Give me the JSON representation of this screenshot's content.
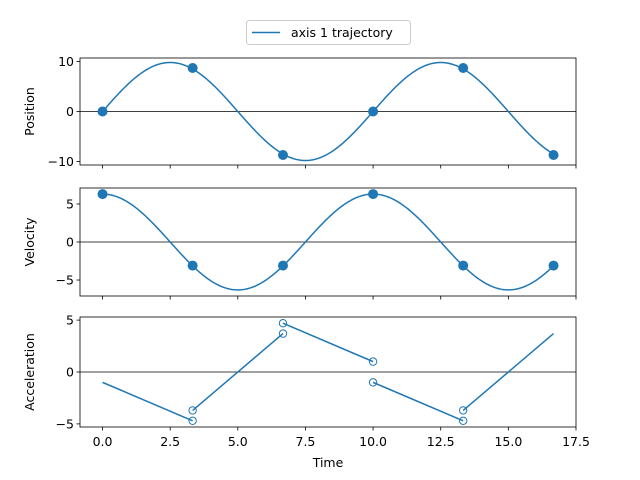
{
  "chart_data": {
    "type": "line",
    "legend": {
      "label": "axis 1 trajectory",
      "placement": "top-center"
    },
    "xlabel": "Time",
    "xlim": [
      -0.833,
      17.5
    ],
    "xticks": [
      0.0,
      2.5,
      5.0,
      7.5,
      10.0,
      12.5,
      15.0,
      17.5
    ],
    "xtick_labels": [
      "0.0",
      "2.5",
      "5.0",
      "7.5",
      "10.0",
      "12.5",
      "15.0",
      "17.5"
    ],
    "line_color": "#1f77b4",
    "subplots": [
      {
        "ylabel": "Position",
        "ylim": [
          -10.7,
          10.7
        ],
        "yticks": [
          10,
          0,
          -10
        ],
        "ytick_labels": [
          "10",
          "0",
          "−10"
        ],
        "zero_line": true,
        "curve": {
          "kind": "sine",
          "amplitude": 9.8,
          "period": 10.0,
          "x_range": [
            0.0,
            16.67
          ]
        },
        "markers": {
          "style": "filled",
          "points": [
            [
              0.0,
              0.0
            ],
            [
              3.33,
              8.7
            ],
            [
              6.67,
              -8.7
            ],
            [
              10.0,
              0.0
            ],
            [
              13.33,
              8.7
            ],
            [
              16.67,
              -8.7
            ]
          ]
        }
      },
      {
        "ylabel": "Velocity",
        "ylim": [
          -7.1,
          7.1
        ],
        "yticks": [
          5,
          0,
          -5
        ],
        "ytick_labels": [
          "5",
          "0",
          "−5"
        ],
        "zero_line": true,
        "curve": {
          "kind": "cosine",
          "amplitude": 6.3,
          "period": 10.0,
          "x_range": [
            0.0,
            16.67
          ]
        },
        "markers": {
          "style": "filled",
          "points": [
            [
              0.0,
              6.3
            ],
            [
              3.33,
              -3.1
            ],
            [
              6.67,
              -3.1
            ],
            [
              10.0,
              6.3
            ],
            [
              13.33,
              -3.1
            ],
            [
              16.67,
              -3.1
            ]
          ]
        }
      },
      {
        "ylabel": "Acceleration",
        "ylim": [
          -5.3,
          5.3
        ],
        "yticks": [
          5,
          0,
          -5
        ],
        "ytick_labels": [
          "5",
          "0",
          "−5"
        ],
        "zero_line": true,
        "segments": [
          [
            [
              0.0,
              -1.0
            ],
            [
              3.33,
              -4.7
            ]
          ],
          [
            [
              3.33,
              -3.7
            ],
            [
              6.67,
              3.7
            ]
          ],
          [
            [
              6.67,
              4.7
            ],
            [
              10.0,
              1.0
            ]
          ],
          [
            [
              10.0,
              -1.0
            ],
            [
              13.33,
              -4.7
            ]
          ],
          [
            [
              13.33,
              -3.7
            ],
            [
              16.67,
              3.7
            ]
          ]
        ],
        "markers": {
          "style": "hollow",
          "points": [
            [
              3.33,
              -4.7
            ],
            [
              3.33,
              -3.7
            ],
            [
              6.67,
              3.7
            ],
            [
              6.67,
              4.7
            ],
            [
              10.0,
              1.0
            ],
            [
              10.0,
              -1.0
            ],
            [
              13.33,
              -4.7
            ],
            [
              13.33,
              -3.7
            ]
          ]
        }
      }
    ]
  }
}
